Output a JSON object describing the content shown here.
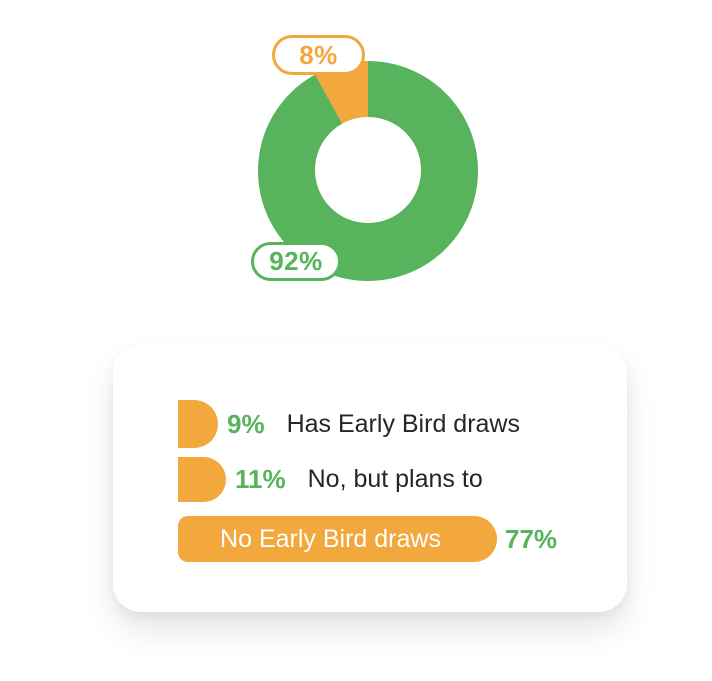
{
  "colors": {
    "green": "#57B45C",
    "orange": "#F2A83C",
    "text_dark": "#262626",
    "card_bg": "#FFFFFF",
    "page_bg": "#FFFFFF"
  },
  "donut": {
    "badge_small": "8%",
    "badge_large": "92%"
  },
  "legend": {
    "rows": [
      {
        "pct": "9%",
        "label": "Has Early Bird draws"
      },
      {
        "pct": "11%",
        "label": "No, but plans to"
      },
      {
        "pct": "77%",
        "label": "No Early Bird draws"
      }
    ]
  },
  "chart_data": [
    {
      "type": "pie",
      "variant": "donut",
      "slices": [
        {
          "label": "92%",
          "value": 92,
          "color_key": "green"
        },
        {
          "label": "8%",
          "value": 8,
          "color_key": "orange"
        }
      ],
      "start_angle_deg": 0,
      "direction": "clockwise",
      "inner_radius_ratio": 0.48,
      "annotations": [
        "8% badge outlined in orange at top-left",
        "92% badge outlined in green at bottom-left"
      ]
    },
    {
      "type": "bar",
      "orientation": "horizontal",
      "categories": [
        "Has Early Bird draws",
        "No, but plans to",
        "No Early Bird draws"
      ],
      "values": [
        9,
        11,
        77
      ],
      "value_labels": [
        "9%",
        "11%",
        "77%"
      ],
      "bar_color_key": "orange",
      "value_label_color_key": "green",
      "xlim": [
        0,
        100
      ],
      "grid": false,
      "legend_position": "none",
      "notes": "Largest bar (77%) carries its category label inside the bar in white; smaller bars have labels to the right"
    }
  ]
}
